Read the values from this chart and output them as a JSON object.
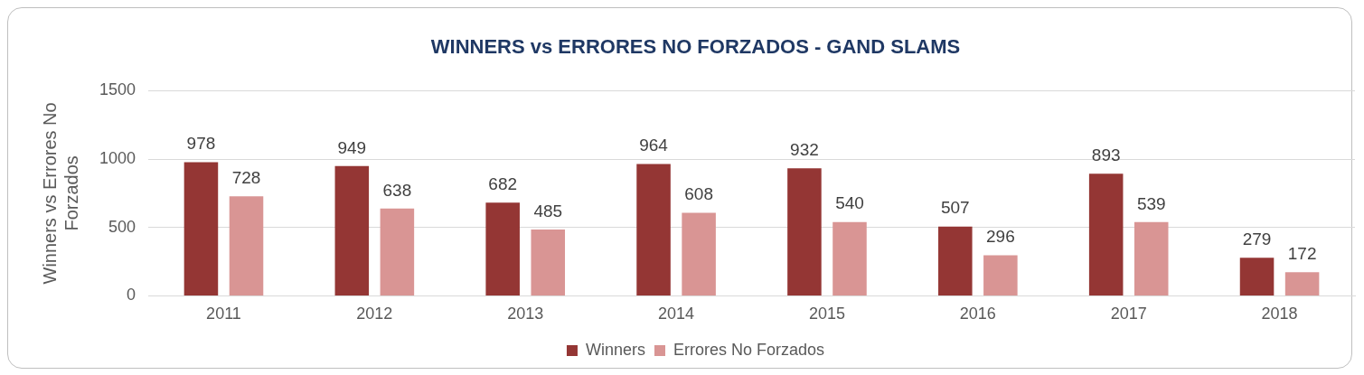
{
  "chart_data": {
    "type": "bar",
    "title": "WINNERS vs ERRORES NO FORZADOS - GAND SLAMS",
    "ylabel": "Winners vs Errores No Forzados",
    "categories": [
      "2011",
      "2012",
      "2013",
      "2014",
      "2015",
      "2016",
      "2017",
      "2018"
    ],
    "series": [
      {
        "name": "Winners",
        "color": "#943634",
        "values": [
          978,
          949,
          682,
          964,
          932,
          507,
          893,
          279
        ]
      },
      {
        "name": "Errores No Forzados",
        "color": "#d99594",
        "values": [
          728,
          638,
          485,
          608,
          540,
          296,
          539,
          172
        ]
      }
    ],
    "ylim": [
      0,
      1500
    ],
    "yticks": [
      0,
      500,
      1000,
      1500
    ],
    "grid": "y",
    "legend": "bottom",
    "data_labels": true
  }
}
